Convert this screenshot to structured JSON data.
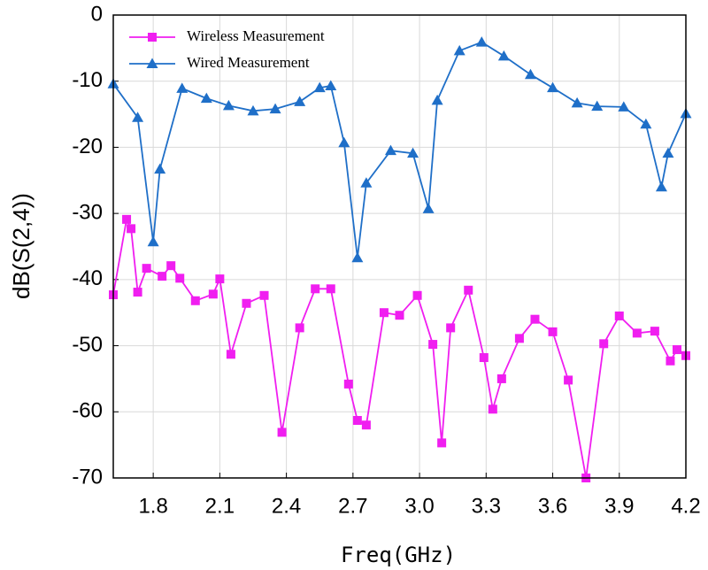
{
  "chart_data": {
    "type": "line",
    "x_label": "Freq(GHz)",
    "y_label": "dB(S(2,4))",
    "xlim": [
      1.62,
      4.2
    ],
    "xticks": [
      1.8,
      2.1,
      2.4,
      2.7,
      {
        "value": 3.0,
        "label": "3.0"
      },
      3.3,
      3.6,
      3.9,
      4.2
    ],
    "ylim": [
      -70,
      0
    ],
    "yticks": [
      0,
      -10,
      -20,
      -30,
      -40,
      -50,
      -60,
      -70
    ],
    "grid": true,
    "legend": "upper left",
    "series": [
      {
        "name": "Wireless Measurement",
        "color": "#f01ef0",
        "marker": "square",
        "x": [
          1.62,
          1.68,
          1.7,
          1.73,
          1.77,
          1.84,
          1.88,
          1.92,
          1.99,
          2.07,
          2.1,
          2.15,
          2.22,
          2.3,
          2.38,
          2.46,
          2.53,
          2.6,
          2.68,
          2.72,
          2.76,
          2.84,
          2.91,
          2.99,
          3.06,
          3.1,
          3.14,
          3.22,
          3.29,
          3.33,
          3.37,
          3.45,
          3.52,
          3.6,
          3.67,
          3.75,
          3.83,
          3.9,
          3.98,
          4.06,
          4.13,
          4.16,
          4.2
        ],
        "values": [
          -42.3,
          -30.9,
          -32.3,
          -41.9,
          -38.3,
          -39.5,
          -37.9,
          -39.8,
          -43.2,
          -42.2,
          -39.9,
          -51.3,
          -43.6,
          -42.4,
          -63.1,
          -47.3,
          -41.4,
          -41.4,
          -55.8,
          -61.3,
          -62.0,
          -45.0,
          -45.4,
          -42.4,
          -49.8,
          -64.7,
          -47.3,
          -41.6,
          -51.8,
          -59.6,
          -55.0,
          -48.9,
          -46.0,
          -47.9,
          -55.2,
          -70,
          -49.7,
          -45.5,
          -48.1,
          -47.8,
          -52.3,
          -50.6,
          -51.5
        ]
      },
      {
        "name": "Wired Measurement",
        "color": "#1f6fc8",
        "marker": "triangle",
        "x": [
          1.62,
          1.73,
          1.8,
          1.83,
          1.93,
          2.04,
          2.14,
          2.25,
          2.35,
          2.46,
          2.55,
          2.6,
          2.66,
          2.72,
          2.76,
          2.87,
          2.97,
          3.04,
          3.08,
          3.18,
          3.28,
          3.38,
          3.5,
          3.6,
          3.71,
          3.8,
          3.92,
          4.02,
          4.09,
          4.12,
          4.2
        ],
        "values": [
          -10.4,
          -15.5,
          -34.3,
          -23.3,
          -11.1,
          -12.6,
          -13.7,
          -14.5,
          -14.2,
          -13.1,
          -11.0,
          -10.7,
          -19.3,
          -36.7,
          -25.4,
          -20.5,
          -20.9,
          -29.3,
          -12.9,
          -5.4,
          -4.1,
          -6.2,
          -9.0,
          -11.0,
          -13.3,
          -13.8,
          -13.9,
          -16.5,
          -26.0,
          -20.9,
          -14.9
        ]
      }
    ]
  }
}
